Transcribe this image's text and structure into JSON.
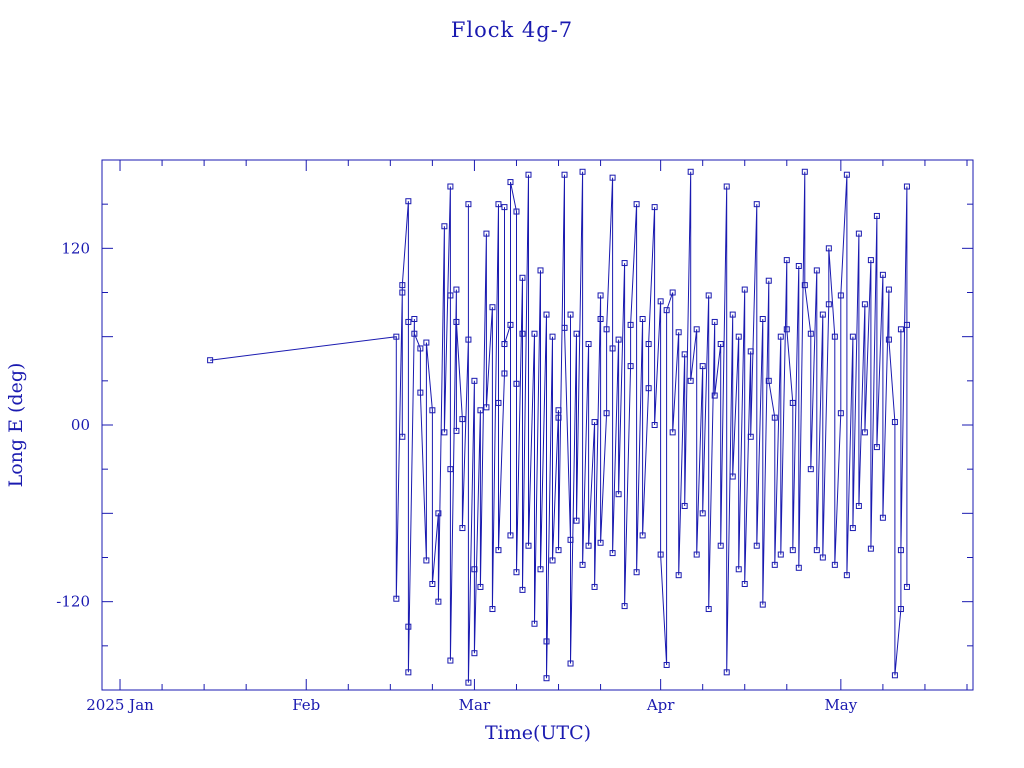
{
  "chart_data": {
    "type": "line",
    "title": "Flock 4g-7",
    "xlabel": "Time(UTC)",
    "ylabel": "Long E (deg)",
    "x_tick_labels": [
      "2025 Jan",
      "Feb",
      "Mar",
      "Apr",
      "May"
    ],
    "x_tick_dates": [
      "2025-01-01",
      "2025-02-01",
      "2025-03-01",
      "2025-04-01",
      "2025-05-01"
    ],
    "xlim": [
      "2024-12-29",
      "2025-05-23"
    ],
    "y_tick_labels": [
      "120",
      "00",
      "-120"
    ],
    "y_tick_values": [
      120,
      0,
      -120
    ],
    "ylim": [
      -180,
      180
    ],
    "grid": false,
    "series": [
      {
        "color": "#1a1ab0",
        "marker": "square",
        "points": [
          {
            "x": "2025-01-16",
            "y": 44
          },
          {
            "x": "2025-02-16",
            "y": 60
          },
          {
            "x": "2025-02-16",
            "y": -118
          },
          {
            "x": "2025-02-17",
            "y": 90
          },
          {
            "x": "2025-02-17",
            "y": -8
          },
          {
            "x": "2025-02-17",
            "y": 95
          },
          {
            "x": "2025-02-18",
            "y": 152
          },
          {
            "x": "2025-02-18",
            "y": 70
          },
          {
            "x": "2025-02-18",
            "y": -137
          },
          {
            "x": "2025-02-18",
            "y": -168
          },
          {
            "x": "2025-02-19",
            "y": 72
          },
          {
            "x": "2025-02-19",
            "y": 62
          },
          {
            "x": "2025-02-20",
            "y": 52
          },
          {
            "x": "2025-02-20",
            "y": 22
          },
          {
            "x": "2025-02-21",
            "y": -92
          },
          {
            "x": "2025-02-21",
            "y": 56
          },
          {
            "x": "2025-02-22",
            "y": 10
          },
          {
            "x": "2025-02-22",
            "y": -108
          },
          {
            "x": "2025-02-23",
            "y": -60
          },
          {
            "x": "2025-02-23",
            "y": -120
          },
          {
            "x": "2025-02-24",
            "y": 135
          },
          {
            "x": "2025-02-24",
            "y": -5
          },
          {
            "x": "2025-02-25",
            "y": 162
          },
          {
            "x": "2025-02-25",
            "y": 88
          },
          {
            "x": "2025-02-25",
            "y": -30
          },
          {
            "x": "2025-02-25",
            "y": -160
          },
          {
            "x": "2025-02-26",
            "y": 92
          },
          {
            "x": "2025-02-26",
            "y": -4
          },
          {
            "x": "2025-02-26",
            "y": 70
          },
          {
            "x": "2025-02-27",
            "y": 4
          },
          {
            "x": "2025-02-27",
            "y": -70
          },
          {
            "x": "2025-02-28",
            "y": 58
          },
          {
            "x": "2025-02-28",
            "y": 150
          },
          {
            "x": "2025-02-28",
            "y": -175
          },
          {
            "x": "2025-03-01",
            "y": 30
          },
          {
            "x": "2025-03-01",
            "y": -98
          },
          {
            "x": "2025-03-01",
            "y": -155
          },
          {
            "x": "2025-03-02",
            "y": 10
          },
          {
            "x": "2025-03-02",
            "y": -110
          },
          {
            "x": "2025-03-03",
            "y": 130
          },
          {
            "x": "2025-03-03",
            "y": 12
          },
          {
            "x": "2025-03-04",
            "y": 80
          },
          {
            "x": "2025-03-04",
            "y": -125
          },
          {
            "x": "2025-03-05",
            "y": 150
          },
          {
            "x": "2025-03-05",
            "y": 15
          },
          {
            "x": "2025-03-05",
            "y": -85
          },
          {
            "x": "2025-03-06",
            "y": 35
          },
          {
            "x": "2025-03-06",
            "y": 148
          },
          {
            "x": "2025-03-06",
            "y": 55
          },
          {
            "x": "2025-03-07",
            "y": 68
          },
          {
            "x": "2025-03-07",
            "y": -75
          },
          {
            "x": "2025-03-07",
            "y": 165
          },
          {
            "x": "2025-03-08",
            "y": 145
          },
          {
            "x": "2025-03-08",
            "y": 28
          },
          {
            "x": "2025-03-08",
            "y": -100
          },
          {
            "x": "2025-03-09",
            "y": 100
          },
          {
            "x": "2025-03-09",
            "y": 62
          },
          {
            "x": "2025-03-09",
            "y": -112
          },
          {
            "x": "2025-03-10",
            "y": 170
          },
          {
            "x": "2025-03-10",
            "y": -82
          },
          {
            "x": "2025-03-11",
            "y": 62
          },
          {
            "x": "2025-03-11",
            "y": -135
          },
          {
            "x": "2025-03-12",
            "y": 105
          },
          {
            "x": "2025-03-12",
            "y": -98
          },
          {
            "x": "2025-03-13",
            "y": 75
          },
          {
            "x": "2025-03-13",
            "y": -147
          },
          {
            "x": "2025-03-13",
            "y": -172
          },
          {
            "x": "2025-03-14",
            "y": 60
          },
          {
            "x": "2025-03-14",
            "y": -92
          },
          {
            "x": "2025-03-15",
            "y": 10
          },
          {
            "x": "2025-03-15",
            "y": 5
          },
          {
            "x": "2025-03-15",
            "y": -85
          },
          {
            "x": "2025-03-16",
            "y": 170
          },
          {
            "x": "2025-03-16",
            "y": 66
          },
          {
            "x": "2025-03-17",
            "y": -78
          },
          {
            "x": "2025-03-17",
            "y": 75
          },
          {
            "x": "2025-03-17",
            "y": -162
          },
          {
            "x": "2025-03-18",
            "y": 62
          },
          {
            "x": "2025-03-18",
            "y": -65
          },
          {
            "x": "2025-03-19",
            "y": 172
          },
          {
            "x": "2025-03-19",
            "y": -95
          },
          {
            "x": "2025-03-20",
            "y": 55
          },
          {
            "x": "2025-03-20",
            "y": -82
          },
          {
            "x": "2025-03-21",
            "y": 2
          },
          {
            "x": "2025-03-21",
            "y": -110
          },
          {
            "x": "2025-03-22",
            "y": 88
          },
          {
            "x": "2025-03-22",
            "y": 72
          },
          {
            "x": "2025-03-22",
            "y": -80
          },
          {
            "x": "2025-03-23",
            "y": 8
          },
          {
            "x": "2025-03-23",
            "y": 65
          },
          {
            "x": "2025-03-24",
            "y": 168
          },
          {
            "x": "2025-03-24",
            "y": 52
          },
          {
            "x": "2025-03-24",
            "y": -87
          },
          {
            "x": "2025-03-25",
            "y": 58
          },
          {
            "x": "2025-03-25",
            "y": -47
          },
          {
            "x": "2025-03-26",
            "y": 110
          },
          {
            "x": "2025-03-26",
            "y": -123
          },
          {
            "x": "2025-03-27",
            "y": 40
          },
          {
            "x": "2025-03-27",
            "y": 68
          },
          {
            "x": "2025-03-28",
            "y": 150
          },
          {
            "x": "2025-03-28",
            "y": -100
          },
          {
            "x": "2025-03-29",
            "y": 72
          },
          {
            "x": "2025-03-29",
            "y": -75
          },
          {
            "x": "2025-03-30",
            "y": 25
          },
          {
            "x": "2025-03-30",
            "y": 55
          },
          {
            "x": "2025-03-31",
            "y": 148
          },
          {
            "x": "2025-03-31",
            "y": 0
          },
          {
            "x": "2025-04-01",
            "y": 84
          },
          {
            "x": "2025-04-01",
            "y": -88
          },
          {
            "x": "2025-04-02",
            "y": -163
          },
          {
            "x": "2025-04-02",
            "y": 78
          },
          {
            "x": "2025-04-03",
            "y": 90
          },
          {
            "x": "2025-04-03",
            "y": -5
          },
          {
            "x": "2025-04-04",
            "y": 63
          },
          {
            "x": "2025-04-04",
            "y": -102
          },
          {
            "x": "2025-04-05",
            "y": 48
          },
          {
            "x": "2025-04-05",
            "y": -55
          },
          {
            "x": "2025-04-06",
            "y": 172
          },
          {
            "x": "2025-04-06",
            "y": 30
          },
          {
            "x": "2025-04-07",
            "y": 65
          },
          {
            "x": "2025-04-07",
            "y": -88
          },
          {
            "x": "2025-04-08",
            "y": 40
          },
          {
            "x": "2025-04-08",
            "y": -60
          },
          {
            "x": "2025-04-09",
            "y": 88
          },
          {
            "x": "2025-04-09",
            "y": -125
          },
          {
            "x": "2025-04-10",
            "y": 70
          },
          {
            "x": "2025-04-10",
            "y": 20
          },
          {
            "x": "2025-04-11",
            "y": 55
          },
          {
            "x": "2025-04-11",
            "y": -82
          },
          {
            "x": "2025-04-12",
            "y": 162
          },
          {
            "x": "2025-04-12",
            "y": -168
          },
          {
            "x": "2025-04-13",
            "y": 75
          },
          {
            "x": "2025-04-13",
            "y": -35
          },
          {
            "x": "2025-04-14",
            "y": 60
          },
          {
            "x": "2025-04-14",
            "y": -98
          },
          {
            "x": "2025-04-15",
            "y": 92
          },
          {
            "x": "2025-04-15",
            "y": -108
          },
          {
            "x": "2025-04-16",
            "y": 50
          },
          {
            "x": "2025-04-16",
            "y": -8
          },
          {
            "x": "2025-04-17",
            "y": 150
          },
          {
            "x": "2025-04-17",
            "y": -82
          },
          {
            "x": "2025-04-18",
            "y": 72
          },
          {
            "x": "2025-04-18",
            "y": -122
          },
          {
            "x": "2025-04-19",
            "y": 98
          },
          {
            "x": "2025-04-19",
            "y": 30
          },
          {
            "x": "2025-04-20",
            "y": 5
          },
          {
            "x": "2025-04-20",
            "y": -95
          },
          {
            "x": "2025-04-21",
            "y": 60
          },
          {
            "x": "2025-04-21",
            "y": -88
          },
          {
            "x": "2025-04-22",
            "y": 112
          },
          {
            "x": "2025-04-22",
            "y": 65
          },
          {
            "x": "2025-04-23",
            "y": 15
          },
          {
            "x": "2025-04-23",
            "y": -85
          },
          {
            "x": "2025-04-24",
            "y": 108
          },
          {
            "x": "2025-04-24",
            "y": -97
          },
          {
            "x": "2025-04-25",
            "y": 172
          },
          {
            "x": "2025-04-25",
            "y": 95
          },
          {
            "x": "2025-04-26",
            "y": 62
          },
          {
            "x": "2025-04-26",
            "y": -30
          },
          {
            "x": "2025-04-27",
            "y": 105
          },
          {
            "x": "2025-04-27",
            "y": -85
          },
          {
            "x": "2025-04-28",
            "y": 75
          },
          {
            "x": "2025-04-28",
            "y": -90
          },
          {
            "x": "2025-04-29",
            "y": 82
          },
          {
            "x": "2025-04-29",
            "y": 120
          },
          {
            "x": "2025-04-30",
            "y": 60
          },
          {
            "x": "2025-04-30",
            "y": -95
          },
          {
            "x": "2025-05-01",
            "y": 8
          },
          {
            "x": "2025-05-01",
            "y": 88
          },
          {
            "x": "2025-05-02",
            "y": 170
          },
          {
            "x": "2025-05-02",
            "y": -102
          },
          {
            "x": "2025-05-03",
            "y": 60
          },
          {
            "x": "2025-05-03",
            "y": -70
          },
          {
            "x": "2025-05-04",
            "y": 130
          },
          {
            "x": "2025-05-04",
            "y": -55
          },
          {
            "x": "2025-05-05",
            "y": 82
          },
          {
            "x": "2025-05-05",
            "y": -5
          },
          {
            "x": "2025-05-06",
            "y": 112
          },
          {
            "x": "2025-05-06",
            "y": -84
          },
          {
            "x": "2025-05-07",
            "y": 142
          },
          {
            "x": "2025-05-07",
            "y": -15
          },
          {
            "x": "2025-05-08",
            "y": 102
          },
          {
            "x": "2025-05-08",
            "y": -63
          },
          {
            "x": "2025-05-09",
            "y": 92
          },
          {
            "x": "2025-05-09",
            "y": 58
          },
          {
            "x": "2025-05-10",
            "y": 2
          },
          {
            "x": "2025-05-10",
            "y": -170
          },
          {
            "x": "2025-05-11",
            "y": -125
          },
          {
            "x": "2025-05-11",
            "y": 65
          },
          {
            "x": "2025-05-11",
            "y": -85
          },
          {
            "x": "2025-05-12",
            "y": 162
          },
          {
            "x": "2025-05-12",
            "y": -110
          },
          {
            "x": "2025-05-12",
            "y": 68
          }
        ]
      }
    ]
  }
}
